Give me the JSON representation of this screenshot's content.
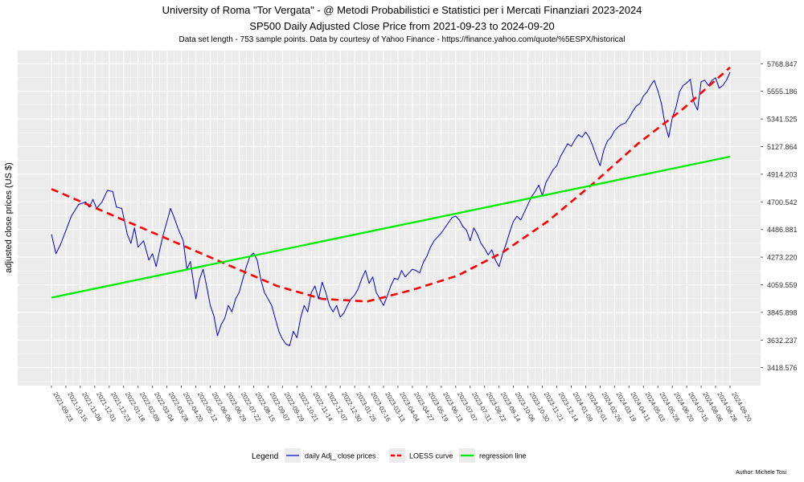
{
  "header": {
    "title": "University of Roma \"Tor Vergata\" - @ Metodi Probabilistici e Statistici per i Mercati Finanziari 2023-2024",
    "subtitle": "SP500 Daily Adjusted Close Price from 2021-09-23 to 2024-09-20",
    "caption": "Data set length - 753 sample points. Data by courtesy of Yahoo Finance - https://finance.yahoo.com/quote/%5ESPX/historical"
  },
  "footer": {
    "author": "Author: Michele Tosi"
  },
  "legend": {
    "title": "Legend",
    "items": [
      {
        "label": "daily Adj_ close prices",
        "color": "#0000cc",
        "style": "solid"
      },
      {
        "label": "LOESS curve",
        "color": "#ff0000",
        "style": "dashed"
      },
      {
        "label": "regression line",
        "color": "#00ee00",
        "style": "solid"
      }
    ]
  },
  "chart_data": {
    "type": "line",
    "ylabel": "adjusted close prices (US $)",
    "xlabel": "",
    "x_tick_labels": [
      "2021-09-23",
      "2021-10-15",
      "2021-11-08",
      "2021-12-01",
      "2021-12-23",
      "2022-01-18",
      "2022-02-09",
      "2022-03-04",
      "2022-03-28",
      "2022-04-20",
      "2022-05-12",
      "2022-06-06",
      "2022-06-29",
      "2022-07-22",
      "2022-08-15",
      "2022-09-07",
      "2022-09-29",
      "2022-10-21",
      "2022-11-14",
      "2022-12-07",
      "2022-12-30",
      "2023-01-25",
      "2023-02-16",
      "2023-03-13",
      "2023-04-04",
      "2023-04-27",
      "2023-05-19",
      "2023-06-13",
      "2023-07-07",
      "2023-07-31",
      "2023-08-22",
      "2023-09-14",
      "2023-10-06",
      "2023-10-30",
      "2023-11-21",
      "2023-12-14",
      "2024-01-09",
      "2024-02-01",
      "2024-02-26",
      "2024-03-19",
      "2024-04-11",
      "2024-05-03",
      "2024-05-28",
      "2024-06-20",
      "2024-07-15",
      "2024-08-06",
      "2024-08-28",
      "2024-09-20"
    ],
    "x_tick_index_step": 16,
    "n_points": 753,
    "y_tick_labels": [
      "3418.576",
      "3632.237",
      "3845.898",
      "4059.559",
      "4273.220",
      "4486.881",
      "4700.542",
      "4914.203",
      "5127.864",
      "5341.525",
      "5555.186",
      "5768.847"
    ],
    "ylim": [
      3280,
      5870
    ],
    "grid": true,
    "legend_position": "bottom",
    "series": [
      {
        "name": "daily Adj_ close prices",
        "color": "#0000cc",
        "style": "solid",
        "points": [
          [
            0,
            4450
          ],
          [
            5,
            4300
          ],
          [
            10,
            4370
          ],
          [
            16,
            4480
          ],
          [
            22,
            4590
          ],
          [
            30,
            4680
          ],
          [
            38,
            4700
          ],
          [
            42,
            4660
          ],
          [
            46,
            4720
          ],
          [
            50,
            4650
          ],
          [
            56,
            4700
          ],
          [
            62,
            4790
          ],
          [
            68,
            4780
          ],
          [
            72,
            4660
          ],
          [
            78,
            4650
          ],
          [
            84,
            4450
          ],
          [
            88,
            4380
          ],
          [
            92,
            4500
          ],
          [
            96,
            4350
          ],
          [
            102,
            4400
          ],
          [
            108,
            4250
          ],
          [
            112,
            4300
          ],
          [
            116,
            4200
          ],
          [
            120,
            4330
          ],
          [
            124,
            4450
          ],
          [
            128,
            4550
          ],
          [
            132,
            4650
          ],
          [
            136,
            4580
          ],
          [
            140,
            4500
          ],
          [
            146,
            4400
          ],
          [
            150,
            4180
          ],
          [
            154,
            4240
          ],
          [
            158,
            4050
          ],
          [
            160,
            3950
          ],
          [
            164,
            4100
          ],
          [
            168,
            4180
          ],
          [
            172,
            4050
          ],
          [
            176,
            3900
          ],
          [
            180,
            3820
          ],
          [
            184,
            3666
          ],
          [
            188,
            3750
          ],
          [
            192,
            3800
          ],
          [
            196,
            3900
          ],
          [
            200,
            3850
          ],
          [
            204,
            3950
          ],
          [
            208,
            4000
          ],
          [
            212,
            4100
          ],
          [
            216,
            4200
          ],
          [
            220,
            4280
          ],
          [
            224,
            4305
          ],
          [
            228,
            4250
          ],
          [
            232,
            4100
          ],
          [
            236,
            4000
          ],
          [
            240,
            3950
          ],
          [
            244,
            3900
          ],
          [
            248,
            3800
          ],
          [
            252,
            3700
          ],
          [
            256,
            3640
          ],
          [
            260,
            3600
          ],
          [
            264,
            3590
          ],
          [
            268,
            3700
          ],
          [
            272,
            3650
          ],
          [
            276,
            3800
          ],
          [
            280,
            3900
          ],
          [
            284,
            3850
          ],
          [
            288,
            4000
          ],
          [
            292,
            4050
          ],
          [
            296,
            3950
          ],
          [
            300,
            4080
          ],
          [
            304,
            4000
          ],
          [
            308,
            3900
          ],
          [
            312,
            3850
          ],
          [
            316,
            3900
          ],
          [
            320,
            3810
          ],
          [
            324,
            3840
          ],
          [
            328,
            3900
          ],
          [
            332,
            3950
          ],
          [
            336,
            3980
          ],
          [
            340,
            4030
          ],
          [
            344,
            4110
          ],
          [
            348,
            4170
          ],
          [
            352,
            4070
          ],
          [
            356,
            4120
          ],
          [
            360,
            4000
          ],
          [
            364,
            3950
          ],
          [
            368,
            3900
          ],
          [
            372,
            3970
          ],
          [
            376,
            4050
          ],
          [
            380,
            4110
          ],
          [
            384,
            4100
          ],
          [
            388,
            4170
          ],
          [
            392,
            4120
          ],
          [
            396,
            4150
          ],
          [
            400,
            4180
          ],
          [
            404,
            4170
          ],
          [
            408,
            4150
          ],
          [
            412,
            4230
          ],
          [
            416,
            4280
          ],
          [
            420,
            4350
          ],
          [
            424,
            4400
          ],
          [
            428,
            4430
          ],
          [
            432,
            4460
          ],
          [
            436,
            4500
          ],
          [
            440,
            4540
          ],
          [
            444,
            4580
          ],
          [
            448,
            4590
          ],
          [
            452,
            4560
          ],
          [
            456,
            4510
          ],
          [
            460,
            4480
          ],
          [
            464,
            4400
          ],
          [
            468,
            4500
          ],
          [
            472,
            4450
          ],
          [
            476,
            4380
          ],
          [
            480,
            4340
          ],
          [
            484,
            4290
          ],
          [
            488,
            4330
          ],
          [
            492,
            4250
          ],
          [
            496,
            4200
          ],
          [
            500,
            4300
          ],
          [
            504,
            4380
          ],
          [
            508,
            4470
          ],
          [
            512,
            4550
          ],
          [
            516,
            4590
          ],
          [
            520,
            4560
          ],
          [
            524,
            4620
          ],
          [
            528,
            4680
          ],
          [
            532,
            4740
          ],
          [
            536,
            4780
          ],
          [
            540,
            4830
          ],
          [
            544,
            4750
          ],
          [
            548,
            4850
          ],
          [
            552,
            4900
          ],
          [
            556,
            4950
          ],
          [
            560,
            4980
          ],
          [
            564,
            5050
          ],
          [
            568,
            5100
          ],
          [
            572,
            5150
          ],
          [
            576,
            5130
          ],
          [
            580,
            5180
          ],
          [
            584,
            5220
          ],
          [
            588,
            5200
          ],
          [
            592,
            5240
          ],
          [
            596,
            5200
          ],
          [
            600,
            5130
          ],
          [
            604,
            5050
          ],
          [
            608,
            4980
          ],
          [
            612,
            5100
          ],
          [
            616,
            5170
          ],
          [
            620,
            5200
          ],
          [
            624,
            5250
          ],
          [
            628,
            5280
          ],
          [
            632,
            5300
          ],
          [
            636,
            5310
          ],
          [
            640,
            5350
          ],
          [
            644,
            5400
          ],
          [
            648,
            5440
          ],
          [
            652,
            5460
          ],
          [
            656,
            5520
          ],
          [
            660,
            5550
          ],
          [
            664,
            5600
          ],
          [
            668,
            5640
          ],
          [
            672,
            5560
          ],
          [
            676,
            5460
          ],
          [
            680,
            5300
          ],
          [
            684,
            5200
          ],
          [
            688,
            5350
          ],
          [
            692,
            5430
          ],
          [
            696,
            5550
          ],
          [
            700,
            5600
          ],
          [
            704,
            5620
          ],
          [
            708,
            5648
          ],
          [
            712,
            5470
          ],
          [
            716,
            5410
          ],
          [
            720,
            5630
          ],
          [
            724,
            5640
          ],
          [
            728,
            5600
          ],
          [
            732,
            5640
          ],
          [
            736,
            5660
          ],
          [
            740,
            5580
          ],
          [
            744,
            5600
          ],
          [
            748,
            5640
          ],
          [
            752,
            5702
          ]
        ]
      },
      {
        "name": "LOESS curve",
        "color": "#ff0000",
        "style": "dashed",
        "points": [
          [
            0,
            4800
          ],
          [
            100,
            4500
          ],
          [
            200,
            4200
          ],
          [
            250,
            4050
          ],
          [
            300,
            3950
          ],
          [
            350,
            3930
          ],
          [
            400,
            4020
          ],
          [
            450,
            4130
          ],
          [
            500,
            4310
          ],
          [
            550,
            4550
          ],
          [
            600,
            4840
          ],
          [
            650,
            5150
          ],
          [
            700,
            5420
          ],
          [
            752,
            5740
          ]
        ]
      },
      {
        "name": "regression line",
        "color": "#00ee00",
        "style": "solid",
        "points": [
          [
            0,
            3960
          ],
          [
            752,
            5050
          ]
        ]
      }
    ]
  }
}
